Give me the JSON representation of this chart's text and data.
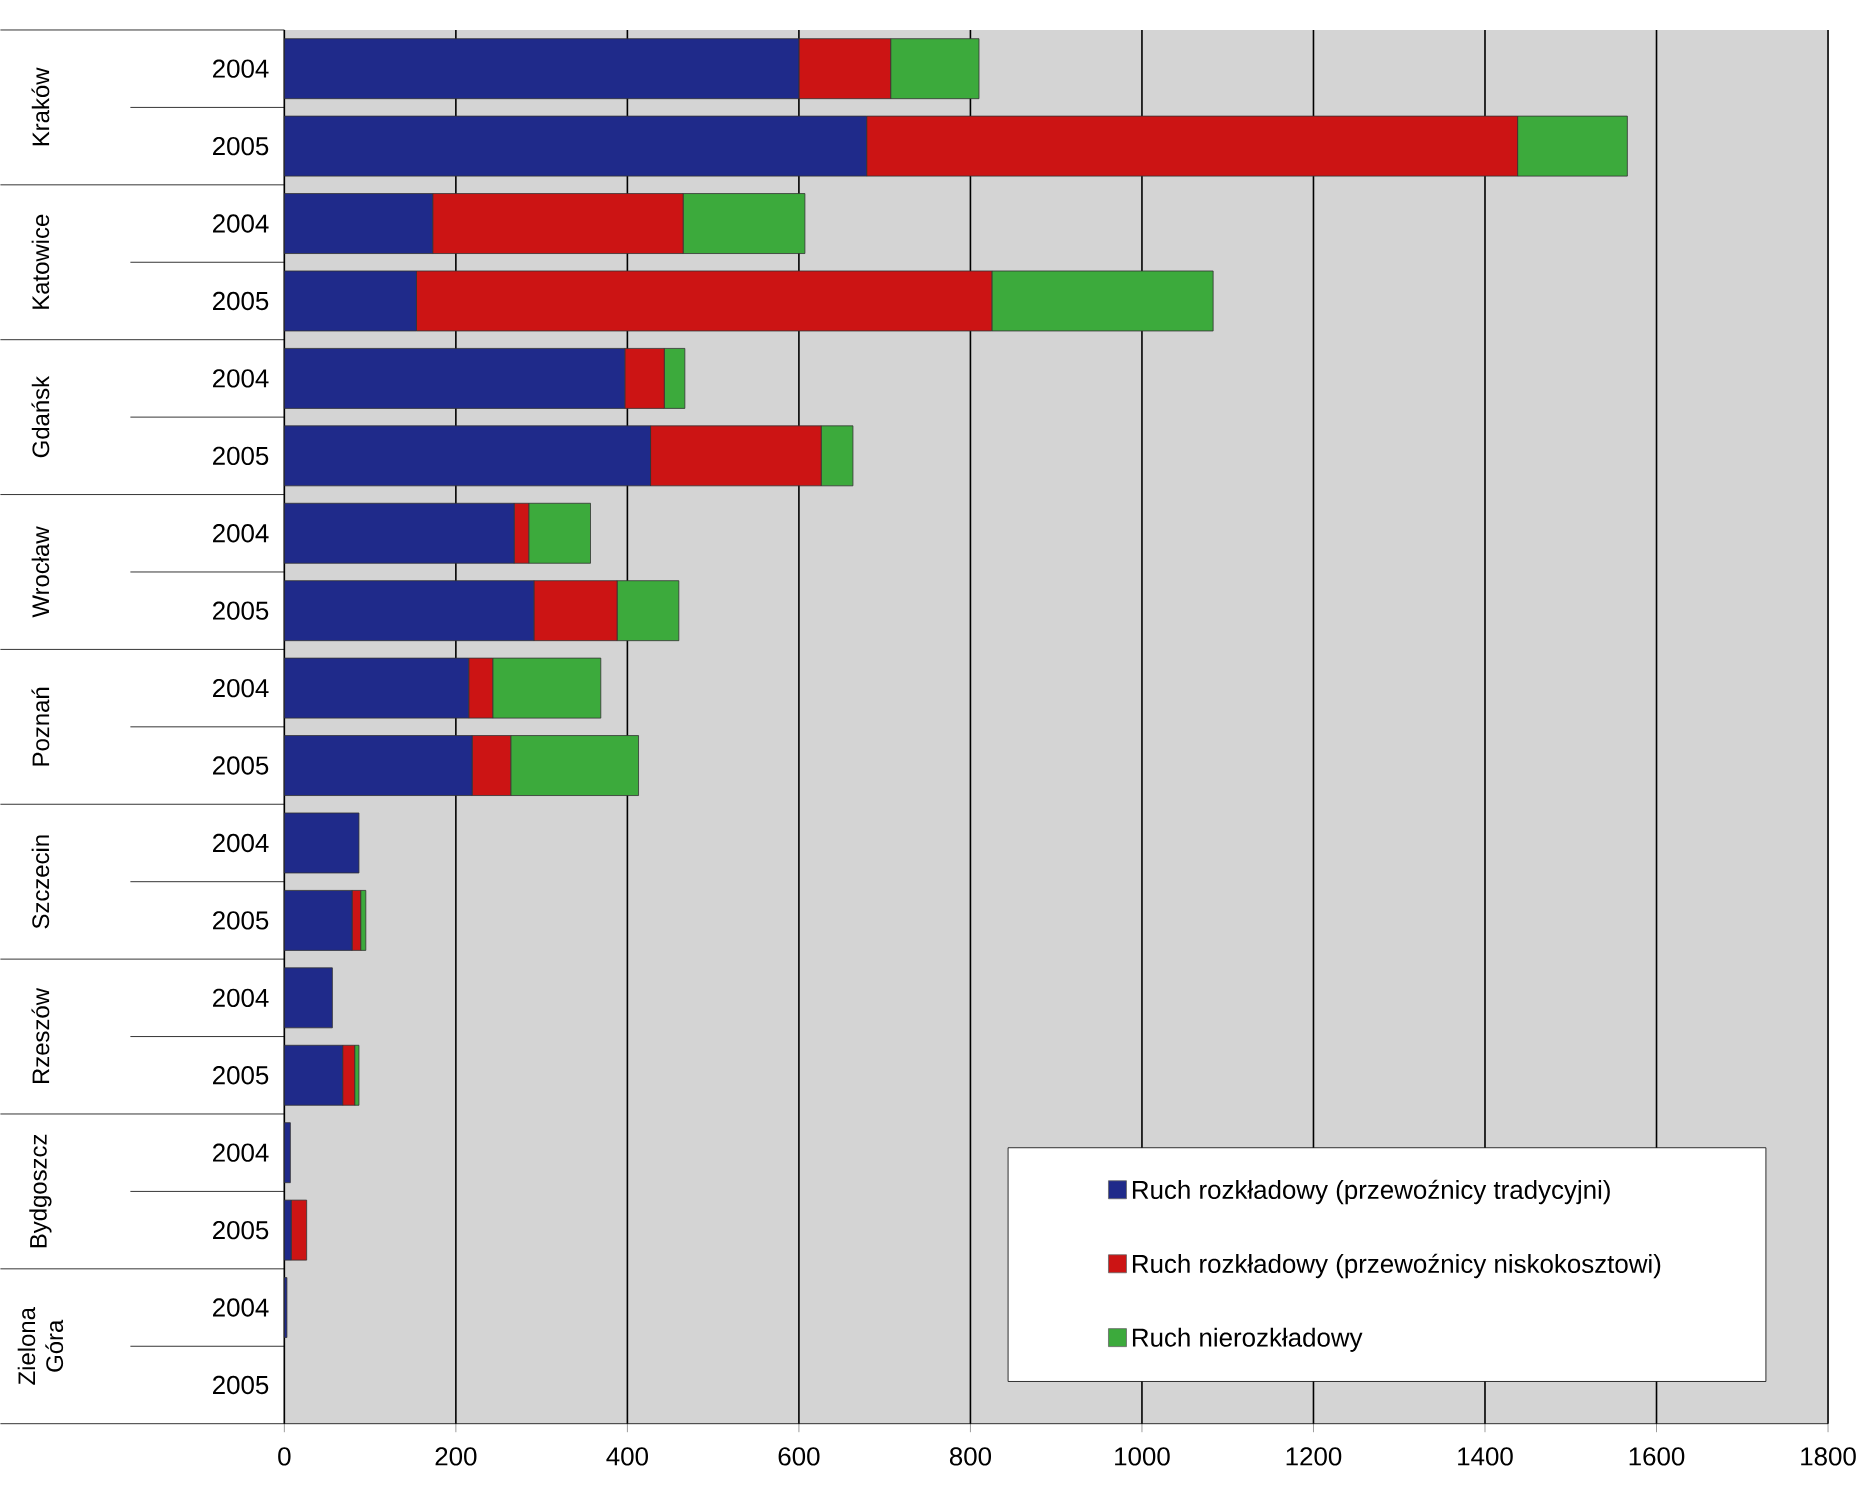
{
  "chart_data": {
    "type": "bar",
    "orientation": "horizontal",
    "stacked": true,
    "categories": [
      "2004",
      "2005",
      "2004",
      "2005",
      "2004",
      "2005",
      "2004",
      "2005",
      "2004",
      "2005",
      "2004",
      "2005",
      "2004",
      "2005",
      "2004",
      "2005",
      "2004",
      "2005"
    ],
    "annotations": [
      "Kraków",
      "Katowice",
      "Gdańsk",
      "Wrocław",
      "Poznań",
      "Szczecin",
      "Rzeszów",
      "Bydgoszcz",
      "Zielona Góra"
    ],
    "series": [
      {
        "name": "Ruch rozkładowy (przewoźnicy tradycyjni)",
        "color": "#1f2a8a",
        "values": [
          600,
          679,
          173,
          154,
          397,
          427,
          268,
          291,
          215,
          219,
          87,
          79,
          56,
          68,
          7,
          8,
          3,
          0
        ]
      },
      {
        "name": "Ruch rozkładowy (przewoźnicy niskokosztowi)",
        "color": "#cc1414",
        "values": [
          107,
          759,
          292,
          671,
          46,
          199,
          17,
          97,
          28,
          45,
          0,
          10,
          0,
          14,
          0,
          18,
          0,
          0
        ]
      },
      {
        "name": "Ruch nierozkładowy",
        "color": "#3caa3c",
        "values": [
          103,
          128,
          142,
          258,
          24,
          37,
          72,
          72,
          126,
          149,
          0,
          6,
          0,
          5,
          0,
          0,
          0,
          0
        ]
      }
    ],
    "xlim": [
      0,
      1800
    ],
    "xticks": [
      0,
      200,
      400,
      600,
      800,
      1000,
      1200,
      1400,
      1600,
      1800
    ],
    "grid": "x",
    "legend": "bottom right"
  }
}
